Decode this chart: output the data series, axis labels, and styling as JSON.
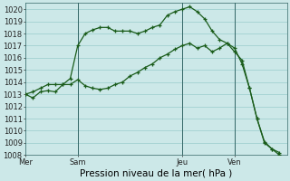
{
  "title": "Pression niveau de la mer( hPa )",
  "bg_color": "#cce8e8",
  "grid_color": "#99cccc",
  "line_color": "#1a5c1a",
  "ylabel_fontsize": 6,
  "xlabel_fontsize": 7.5,
  "tick_label_fontsize": 6,
  "ylim": [
    1008,
    1020.5
  ],
  "yticks": [
    1008,
    1009,
    1010,
    1011,
    1012,
    1013,
    1014,
    1015,
    1016,
    1017,
    1018,
    1019,
    1020
  ],
  "day_labels": [
    "Mer",
    "Sam",
    "Jeu",
    "Ven"
  ],
  "day_positions": [
    0,
    7,
    21,
    28
  ],
  "vline_positions": [
    7,
    21,
    28
  ],
  "xlim": [
    0,
    35
  ],
  "line1_x": [
    0,
    1,
    2,
    3,
    4,
    5,
    6,
    7,
    8,
    9,
    10,
    11,
    12,
    13,
    14,
    15,
    16,
    17,
    18,
    19,
    20,
    21,
    22,
    23,
    24,
    25,
    26,
    27,
    28,
    29,
    30,
    31,
    32,
    33,
    34
  ],
  "line1_y": [
    1013.0,
    1012.7,
    1013.2,
    1013.3,
    1013.2,
    1013.8,
    1014.3,
    1017.0,
    1018.0,
    1018.3,
    1018.5,
    1018.5,
    1018.2,
    1018.2,
    1018.2,
    1018.0,
    1018.2,
    1018.5,
    1018.7,
    1019.5,
    1019.8,
    1020.0,
    1020.2,
    1019.8,
    1019.2,
    1018.2,
    1017.5,
    1017.2,
    1016.8,
    1015.5,
    1013.5,
    1011.0,
    1009.1,
    1008.5,
    1008.2
  ],
  "line2_x": [
    0,
    1,
    2,
    3,
    4,
    5,
    6,
    7,
    8,
    9,
    10,
    11,
    12,
    13,
    14,
    15,
    16,
    17,
    18,
    19,
    20,
    21,
    22,
    23,
    24,
    25,
    26,
    27,
    28,
    29,
    30,
    31,
    32,
    33,
    34
  ],
  "line2_y": [
    1013.0,
    1013.2,
    1013.5,
    1013.8,
    1013.8,
    1013.8,
    1013.8,
    1014.2,
    1013.7,
    1013.5,
    1013.4,
    1013.5,
    1013.8,
    1014.0,
    1014.5,
    1014.8,
    1015.2,
    1015.5,
    1016.0,
    1016.3,
    1016.7,
    1017.0,
    1017.2,
    1016.8,
    1017.0,
    1016.5,
    1016.8,
    1017.2,
    1016.5,
    1015.8,
    1013.5,
    1011.0,
    1009.0,
    1008.5,
    1008.0
  ]
}
